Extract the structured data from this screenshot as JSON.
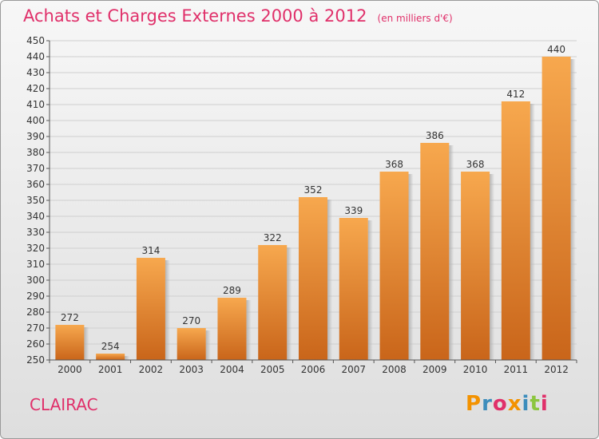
{
  "header": {
    "title": "Achats et Charges Externes 2000 à 2012",
    "unit": "(en milliers d'€)"
  },
  "commune": "CLAIRAC",
  "logo": {
    "letters": [
      "P",
      "r",
      "o",
      "x",
      "i",
      "t",
      "i"
    ],
    "colors": [
      "#f39200",
      "#3c8dbc",
      "#e0306a",
      "#f39200",
      "#3c8dbc",
      "#8cc63f",
      "#e0306a"
    ]
  },
  "chart_data": {
    "type": "bar",
    "categories": [
      "2000",
      "2001",
      "2002",
      "2003",
      "2004",
      "2005",
      "2006",
      "2007",
      "2008",
      "2009",
      "2010",
      "2011",
      "2012"
    ],
    "values": [
      272,
      254,
      314,
      270,
      289,
      322,
      352,
      339,
      368,
      386,
      368,
      412,
      440
    ],
    "ylim": [
      250,
      450
    ],
    "ytick_step": 10,
    "grid": true,
    "bar_color_top": "#f7a84e",
    "bar_color_bottom": "#c9651a",
    "title_color": "#e0306a"
  }
}
